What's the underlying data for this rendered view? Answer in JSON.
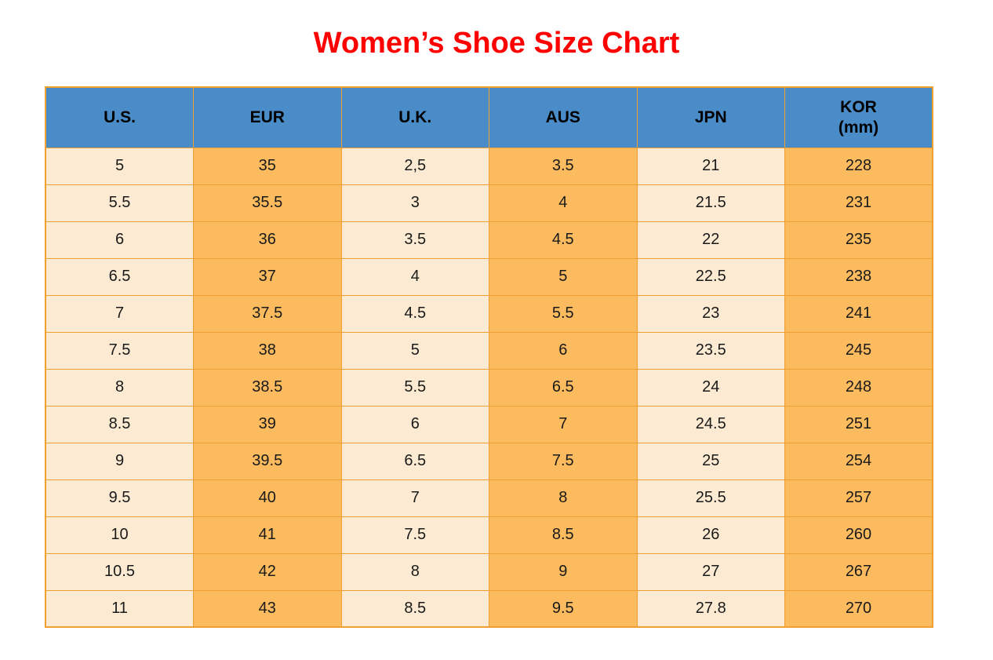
{
  "title": {
    "text": "Women’s Shoe Size Chart"
  },
  "table": {
    "columns": [
      {
        "label": "U.S.",
        "sublabel": ""
      },
      {
        "label": "EUR",
        "sublabel": ""
      },
      {
        "label": "U.K.",
        "sublabel": ""
      },
      {
        "label": "AUS",
        "sublabel": ""
      },
      {
        "label": "JPN",
        "sublabel": ""
      },
      {
        "label": "KOR",
        "sublabel": "(mm)"
      }
    ],
    "rows": [
      [
        "5",
        "35",
        "2,5",
        "3.5",
        "21",
        "228"
      ],
      [
        "5.5",
        "35.5",
        "3",
        "4",
        "21.5",
        "231"
      ],
      [
        "6",
        "36",
        "3.5",
        "4.5",
        "22",
        "235"
      ],
      [
        "6.5",
        "37",
        "4",
        "5",
        "22.5",
        "238"
      ],
      [
        "7",
        "37.5",
        "4.5",
        "5.5",
        "23",
        "241"
      ],
      [
        "7.5",
        "38",
        "5",
        "6",
        "23.5",
        "245"
      ],
      [
        "8",
        "38.5",
        "5.5",
        "6.5",
        "24",
        "248"
      ],
      [
        "8.5",
        "39",
        "6",
        "7",
        "24.5",
        "251"
      ],
      [
        "9",
        "39.5",
        "6.5",
        "7.5",
        "25",
        "254"
      ],
      [
        "9.5",
        "40",
        "7",
        "8",
        "25.5",
        "257"
      ],
      [
        "10",
        "41",
        "7.5",
        "8.5",
        "26",
        "260"
      ],
      [
        "10.5",
        "42",
        "8",
        "9",
        "27",
        "267"
      ],
      [
        "11",
        "43",
        "8.5",
        "9.5",
        "27.8",
        "270"
      ]
    ],
    "colors": {
      "title_color": "#ff0000",
      "header_bg": "#4a8cc8",
      "header_text": "#000000",
      "col_light": "#fcebd2",
      "col_orange": "#fcbb5e",
      "border": "#f0a030",
      "cell_text": "#1a1a1a"
    }
  },
  "chart_data": {
    "type": "table",
    "title": "Women’s Shoe Size Chart",
    "columns": [
      "U.S.",
      "EUR",
      "U.K.",
      "AUS",
      "JPN",
      "KOR (mm)"
    ],
    "rows": [
      [
        "5",
        "35",
        "2,5",
        "3.5",
        "21",
        "228"
      ],
      [
        "5.5",
        "35.5",
        "3",
        "4",
        "21.5",
        "231"
      ],
      [
        "6",
        "36",
        "3.5",
        "4.5",
        "22",
        "235"
      ],
      [
        "6.5",
        "37",
        "4",
        "5",
        "22.5",
        "238"
      ],
      [
        "7",
        "37.5",
        "4.5",
        "5.5",
        "23",
        "241"
      ],
      [
        "7.5",
        "38",
        "5",
        "6",
        "23.5",
        "245"
      ],
      [
        "8",
        "38.5",
        "5.5",
        "6.5",
        "24",
        "248"
      ],
      [
        "8.5",
        "39",
        "6",
        "7",
        "24.5",
        "251"
      ],
      [
        "9",
        "39.5",
        "6.5",
        "7.5",
        "25",
        "254"
      ],
      [
        "9.5",
        "40",
        "7",
        "8",
        "25.5",
        "257"
      ],
      [
        "10",
        "41",
        "7.5",
        "8.5",
        "26",
        "260"
      ],
      [
        "10.5",
        "42",
        "8",
        "9",
        "27",
        "267"
      ],
      [
        "11",
        "43",
        "8.5",
        "9.5",
        "27.8",
        "270"
      ]
    ],
    "layout": {
      "column_fill_pattern": [
        "light",
        "orange",
        "light",
        "orange",
        "light",
        "orange"
      ],
      "header_style": "blue-band",
      "grid": true
    }
  }
}
